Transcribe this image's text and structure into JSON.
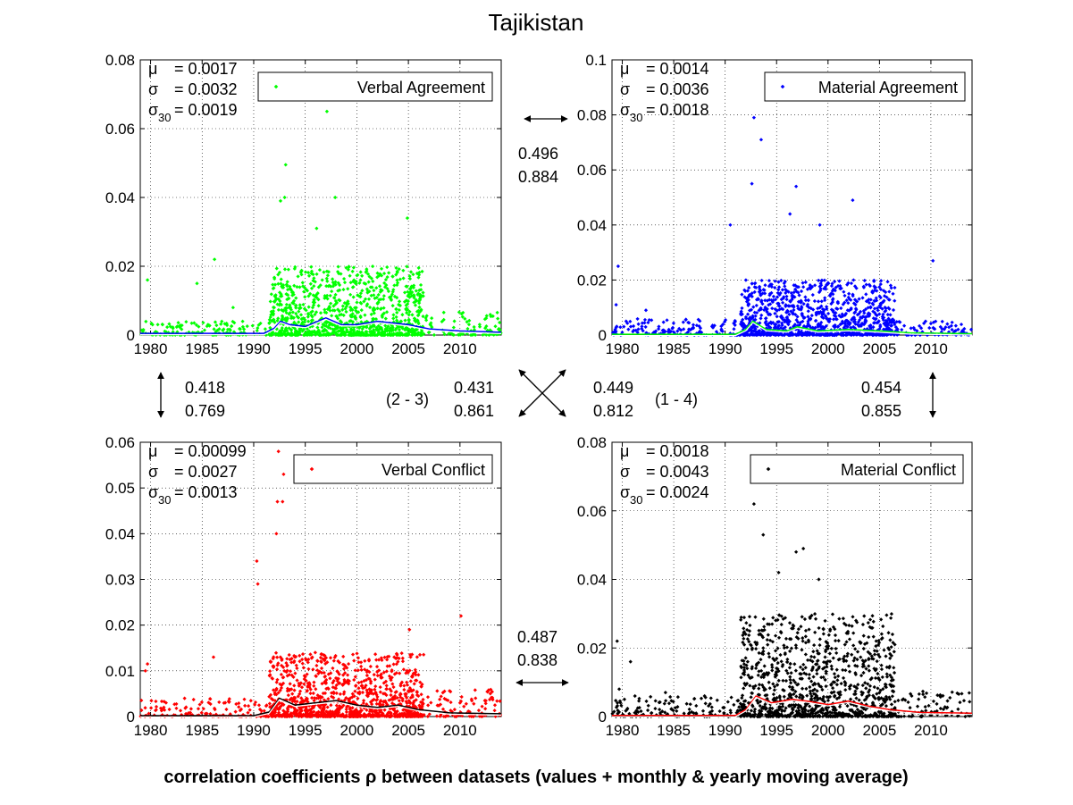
{
  "figure": {
    "title": "Tajikistan",
    "footer": "correlation coefficients ρ between datasets (values + monthly & yearly moving average)"
  },
  "connectors": {
    "top_pair": [
      "0.496",
      "0.884"
    ],
    "left_pair": [
      "0.418",
      "0.769"
    ],
    "right_pair": [
      "0.454",
      "0.855"
    ],
    "bottom_pair": [
      "0.487",
      "0.838"
    ],
    "diag_left": [
      "0.431",
      "0.861"
    ],
    "diag_right": [
      "0.449",
      "0.812"
    ],
    "diag_left_label": "(2 - 3)",
    "diag_right_label": "(1 - 4)"
  },
  "chart_data": [
    {
      "type": "scatter",
      "title": "",
      "legend": "Verbal Agreement",
      "legend_position": "top-right",
      "color": "#00ff00",
      "avg_color": "#0000ff",
      "stats": {
        "mu": "= 0.0017",
        "sigma": "= 0.0032",
        "sigma30": "= 0.0019"
      },
      "xlim": [
        1979,
        2014
      ],
      "ylim": [
        0,
        0.08
      ],
      "xticks": [
        "1980",
        "1985",
        "1990",
        "1995",
        "2000",
        "2005",
        "2010"
      ],
      "yticks": [
        "0",
        "0.02",
        "0.04",
        "0.06",
        "0.08"
      ],
      "grid": true,
      "outliers": [
        {
          "x": 1997.1,
          "y": 0.065
        },
        {
          "x": 1993.1,
          "y": 0.0495
        },
        {
          "x": 1997.9,
          "y": 0.04
        },
        {
          "x": 1993.0,
          "y": 0.04
        },
        {
          "x": 1992.6,
          "y": 0.039
        },
        {
          "x": 2004.9,
          "y": 0.034
        },
        {
          "x": 1996.1,
          "y": 0.031
        },
        {
          "x": 1986.2,
          "y": 0.022
        },
        {
          "x": 1979.7,
          "y": 0.016
        },
        {
          "x": 1984.5,
          "y": 0.015
        },
        {
          "x": 1988.0,
          "y": 0.008
        }
      ],
      "density": [
        {
          "start": 1979,
          "end": 1991.5,
          "level": 0.004
        },
        {
          "start": 1991.5,
          "end": 2006.5,
          "level": 0.02
        },
        {
          "start": 2006.5,
          "end": 2014,
          "level": 0.007
        }
      ],
      "moving_average": [
        [
          1979,
          0.0005
        ],
        [
          1991,
          0.0005
        ],
        [
          1992,
          0.002
        ],
        [
          1992.6,
          0.004
        ],
        [
          1993.5,
          0.003
        ],
        [
          1995,
          0.0025
        ],
        [
          1997,
          0.005
        ],
        [
          1998.5,
          0.003
        ],
        [
          2000,
          0.003
        ],
        [
          2002,
          0.004
        ],
        [
          2003.5,
          0.0035
        ],
        [
          2005,
          0.003
        ],
        [
          2007,
          0.0018
        ],
        [
          2010,
          0.0012
        ],
        [
          2014,
          0.0008
        ]
      ]
    },
    {
      "type": "scatter",
      "title": "",
      "legend": "Material Agreement",
      "legend_position": "top-right",
      "color": "#0000ff",
      "avg_color": "#00ff00",
      "stats": {
        "mu": "= 0.0014",
        "sigma": "= 0.0036",
        "sigma30": "= 0.0018"
      },
      "xlim": [
        1979,
        2014
      ],
      "ylim": [
        0,
        0.1
      ],
      "xticks": [
        "1980",
        "1985",
        "1990",
        "1995",
        "2000",
        "2005",
        "2010"
      ],
      "yticks": [
        "0",
        "0.02",
        "0.04",
        "0.06",
        "0.08",
        "0.1"
      ],
      "grid": true,
      "outliers": [
        {
          "x": 1992.8,
          "y": 0.079
        },
        {
          "x": 1993.5,
          "y": 0.071
        },
        {
          "x": 1992.6,
          "y": 0.055
        },
        {
          "x": 1996.9,
          "y": 0.054
        },
        {
          "x": 1996.3,
          "y": 0.044
        },
        {
          "x": 2002.4,
          "y": 0.049
        },
        {
          "x": 1990.5,
          "y": 0.04
        },
        {
          "x": 1999.2,
          "y": 0.04
        },
        {
          "x": 2010.2,
          "y": 0.027
        },
        {
          "x": 1979.6,
          "y": 0.025
        },
        {
          "x": 1979.4,
          "y": 0.011
        },
        {
          "x": 1982.3,
          "y": 0.009
        }
      ],
      "density": [
        {
          "start": 1979,
          "end": 1991.5,
          "level": 0.006
        },
        {
          "start": 1991.5,
          "end": 2006.5,
          "level": 0.02
        },
        {
          "start": 2006.5,
          "end": 2014,
          "level": 0.005
        }
      ],
      "moving_average": [
        [
          1979,
          0.0003
        ],
        [
          1991,
          0.0003
        ],
        [
          1992,
          0.002
        ],
        [
          1992.7,
          0.005
        ],
        [
          1994,
          0.002
        ],
        [
          1996,
          0.0015
        ],
        [
          1997,
          0.003
        ],
        [
          1999,
          0.0015
        ],
        [
          2002,
          0.002
        ],
        [
          2005,
          0.0015
        ],
        [
          2008,
          0.0008
        ],
        [
          2014,
          0.0005
        ]
      ]
    },
    {
      "type": "scatter",
      "title": "",
      "legend": "Verbal Conflict",
      "legend_position": "top-right",
      "color": "#ff0000",
      "avg_color": "#000000",
      "stats": {
        "mu": "= 0.00099",
        "sigma": "= 0.0027",
        "sigma30": "= 0.0013"
      },
      "xlim": [
        1979,
        2014
      ],
      "ylim": [
        0,
        0.06
      ],
      "xticks": [
        "1980",
        "1985",
        "1990",
        "1995",
        "2000",
        "2005",
        "2010"
      ],
      "yticks": [
        "0",
        "0.01",
        "0.02",
        "0.03",
        "0.04",
        "0.05",
        "0.06"
      ],
      "grid": true,
      "outliers": [
        {
          "x": 1992.4,
          "y": 0.058
        },
        {
          "x": 1992.9,
          "y": 0.053
        },
        {
          "x": 1992.3,
          "y": 0.047
        },
        {
          "x": 1992.8,
          "y": 0.047
        },
        {
          "x": 1992.2,
          "y": 0.04
        },
        {
          "x": 1990.3,
          "y": 0.034
        },
        {
          "x": 1990.4,
          "y": 0.029
        },
        {
          "x": 2010.1,
          "y": 0.022
        },
        {
          "x": 2005.1,
          "y": 0.019
        },
        {
          "x": 1979.7,
          "y": 0.0115
        },
        {
          "x": 1979.5,
          "y": 0.01
        },
        {
          "x": 1981.5,
          "y": 0.003
        },
        {
          "x": 1986.1,
          "y": 0.013
        }
      ],
      "density": [
        {
          "start": 1979,
          "end": 1991.5,
          "level": 0.004
        },
        {
          "start": 1991.5,
          "end": 2006.5,
          "level": 0.014
        },
        {
          "start": 2006.5,
          "end": 2014,
          "level": 0.006
        }
      ],
      "moving_average": [
        [
          1979,
          0.0002
        ],
        [
          1990,
          0.0002
        ],
        [
          1991.5,
          0.001
        ],
        [
          1992.5,
          0.004
        ],
        [
          1994,
          0.0025
        ],
        [
          1996,
          0.003
        ],
        [
          1998,
          0.0035
        ],
        [
          2000,
          0.0025
        ],
        [
          2002,
          0.002
        ],
        [
          2004,
          0.0025
        ],
        [
          2006,
          0.0015
        ],
        [
          2009,
          0.0008
        ],
        [
          2014,
          0.0006
        ]
      ]
    },
    {
      "type": "scatter",
      "title": "",
      "legend": "Material Conflict",
      "legend_position": "top-right",
      "color": "#000000",
      "avg_color": "#ff0000",
      "stats": {
        "mu": "= 0.0018",
        "sigma": "= 0.0043",
        "sigma30": "= 0.0024"
      },
      "xlim": [
        1979,
        2014
      ],
      "ylim": [
        0,
        0.08
      ],
      "xticks": [
        "1980",
        "1985",
        "1990",
        "1995",
        "2000",
        "2005",
        "2010"
      ],
      "yticks": [
        "0",
        "0.02",
        "0.04",
        "0.06",
        "0.08"
      ],
      "grid": true,
      "outliers": [
        {
          "x": 1992.8,
          "y": 0.062
        },
        {
          "x": 1993.7,
          "y": 0.053
        },
        {
          "x": 1997.6,
          "y": 0.049
        },
        {
          "x": 1996.9,
          "y": 0.048
        },
        {
          "x": 1995.2,
          "y": 0.042
        },
        {
          "x": 1999.1,
          "y": 0.04
        },
        {
          "x": 1979.5,
          "y": 0.022
        },
        {
          "x": 1980.8,
          "y": 0.016
        },
        {
          "x": 1979.7,
          "y": 0.008
        },
        {
          "x": 1984.2,
          "y": 0.007
        },
        {
          "x": 1988.0,
          "y": 0.006
        }
      ],
      "density": [
        {
          "start": 1979,
          "end": 1991.5,
          "level": 0.006
        },
        {
          "start": 1991.5,
          "end": 2006.5,
          "level": 0.03
        },
        {
          "start": 2006.5,
          "end": 2014,
          "level": 0.008
        }
      ],
      "moving_average": [
        [
          1979,
          0.0003
        ],
        [
          1991,
          0.0003
        ],
        [
          1992,
          0.002
        ],
        [
          1993,
          0.006
        ],
        [
          1994.5,
          0.004
        ],
        [
          1996.5,
          0.005
        ],
        [
          1998,
          0.0045
        ],
        [
          2000,
          0.0035
        ],
        [
          2002,
          0.0045
        ],
        [
          2004,
          0.003
        ],
        [
          2006,
          0.002
        ],
        [
          2009,
          0.0012
        ],
        [
          2014,
          0.001
        ]
      ]
    }
  ]
}
